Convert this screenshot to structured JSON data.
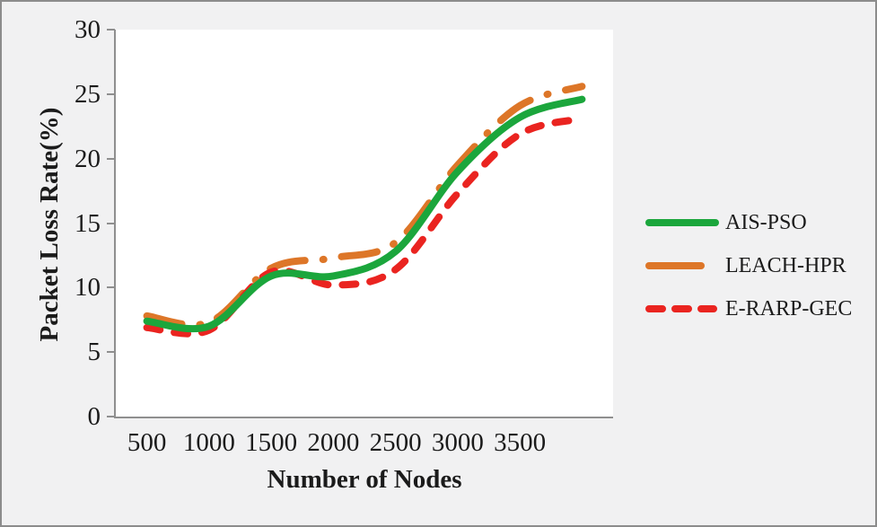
{
  "figure": {
    "background": "#f1f1f2",
    "border_color": "#8c8c8c",
    "plot_background": "#ffffff",
    "axis_color": "#8f8f8f",
    "text_color": "#1b1b1b"
  },
  "chart_data": {
    "type": "line",
    "title": "",
    "xlabel": "Number of Nodes",
    "ylabel": "Packet Loss Rate(%)",
    "x_tick_labels": [
      "500",
      "1000",
      "1500",
      "2000",
      "2500",
      "3000",
      "3500"
    ],
    "y_tick_labels": [
      "0",
      "5",
      "10",
      "15",
      "20",
      "25",
      "30"
    ],
    "ylim": [
      0,
      30
    ],
    "grid": false,
    "legend_position": "right-outside",
    "x": [
      500,
      1000,
      1500,
      2000,
      2500,
      3000,
      3500,
      4000
    ],
    "note_last_point_unlabeled": true,
    "series": [
      {
        "name": "AIS-PSO",
        "color": "#1ba63c",
        "style": "solid",
        "values": [
          7.4,
          7.0,
          10.9,
          10.9,
          12.8,
          19.0,
          23.2,
          24.6
        ]
      },
      {
        "name": "LEACH-HPR",
        "color": "#dd7628",
        "style": "dash-dot",
        "values": [
          7.8,
          7.3,
          11.5,
          12.3,
          13.5,
          19.5,
          24.1,
          25.6
        ]
      },
      {
        "name": "E-RARP-GEC",
        "color": "#ea2420",
        "style": "dashed",
        "values": [
          6.9,
          6.7,
          11.2,
          10.2,
          11.4,
          17.3,
          21.9,
          23.1
        ]
      }
    ]
  }
}
